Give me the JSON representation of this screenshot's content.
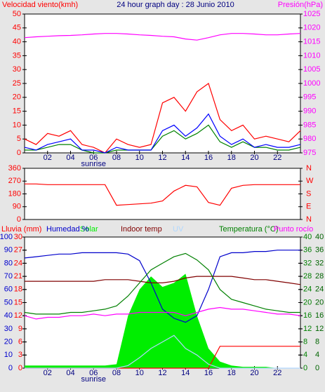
{
  "chart_data": [
    {
      "type": "line",
      "title": "24 hour graph day : 28 Junio 2010",
      "x": [
        0,
        1,
        2,
        3,
        4,
        5,
        6,
        7,
        8,
        9,
        10,
        11,
        12,
        13,
        14,
        15,
        16,
        17,
        18,
        19,
        20,
        21,
        22,
        23,
        24
      ],
      "xlim": [
        0,
        24
      ],
      "xticks": [
        {
          "value": 2,
          "label": "02"
        },
        {
          "value": 4,
          "label": "04"
        },
        {
          "value": 6,
          "label": "06"
        },
        {
          "value": 8,
          "label": "08"
        },
        {
          "value": 10,
          "label": "10"
        },
        {
          "value": 12,
          "label": "12"
        },
        {
          "value": 14,
          "label": "14"
        },
        {
          "value": 16,
          "label": "16"
        },
        {
          "value": 18,
          "label": "18"
        },
        {
          "value": 20,
          "label": "20"
        },
        {
          "value": 22,
          "label": "22"
        }
      ],
      "annotations": [
        {
          "x": 6,
          "text": "sunrise"
        }
      ],
      "axes": [
        {
          "side": "left",
          "label": "Velocidad viento(kmh)",
          "color": "#ff0000",
          "lim": [
            0,
            50
          ],
          "ticks": [
            0,
            5,
            10,
            15,
            20,
            25,
            30,
            35,
            40,
            45,
            50
          ]
        },
        {
          "side": "right",
          "label": "Presión(hPa)",
          "color": "#ff00ff",
          "lim": [
            975,
            1025
          ],
          "ticks": [
            975,
            980,
            985,
            990,
            995,
            1000,
            1005,
            1010,
            1015,
            1020,
            1025
          ]
        }
      ],
      "series": [
        {
          "color": "#ff0000",
          "axis": 0,
          "values": [
            5,
            3,
            7,
            6,
            8,
            3,
            2,
            0,
            5,
            3,
            2,
            3,
            18,
            20,
            15,
            22,
            25,
            12,
            8,
            10,
            5,
            6,
            5,
            4,
            8
          ]
        },
        {
          "color": "#008000",
          "axis": 0,
          "values": [
            1,
            1,
            2,
            3,
            3,
            1,
            0,
            0,
            1,
            1,
            1,
            1,
            6,
            8,
            5,
            7,
            10,
            4,
            2,
            4,
            2,
            2,
            1,
            1,
            2
          ]
        },
        {
          "color": "#0000ff",
          "axis": 0,
          "values": [
            2,
            1,
            3,
            4,
            5,
            1,
            1,
            0,
            2,
            1,
            1,
            1,
            8,
            10,
            6,
            9,
            14,
            6,
            3,
            5,
            2,
            3,
            2,
            2,
            3
          ]
        },
        {
          "color": "#ff00ff",
          "axis": 1,
          "values": [
            1016.5,
            1016.8,
            1017,
            1017.2,
            1017.3,
            1017.5,
            1017.8,
            1018,
            1018,
            1017.8,
            1017.5,
            1017.3,
            1017,
            1016.8,
            1016,
            1015.6,
            1016.5,
            1017.5,
            1018,
            1018,
            1017.8,
            1017.5,
            1017.5,
            1017.8,
            1018
          ]
        }
      ]
    },
    {
      "type": "line",
      "x": [
        0,
        1,
        2,
        3,
        4,
        5,
        6,
        7,
        8,
        9,
        10,
        11,
        12,
        13,
        14,
        15,
        16,
        17,
        18,
        19,
        20,
        21,
        22,
        23,
        24
      ],
      "xlim": [
        0,
        24
      ],
      "axes": [
        {
          "side": "left",
          "color": "#ff0000",
          "lim": [
            0,
            360
          ],
          "ticks": [
            0,
            90,
            180,
            270,
            360
          ]
        },
        {
          "side": "right",
          "color": "#ff0000",
          "lim": [
            0,
            360
          ],
          "ticks": [
            {
              "value": 0,
              "label": "N"
            },
            {
              "value": 90,
              "label": "E"
            },
            {
              "value": 180,
              "label": "S"
            },
            {
              "value": 270,
              "label": "W"
            },
            {
              "value": 360,
              "label": "N"
            }
          ]
        }
      ],
      "series": [
        {
          "color": "#ff0000",
          "axis": 0,
          "values": [
            250,
            250,
            245,
            245,
            245,
            245,
            245,
            245,
            100,
            105,
            110,
            115,
            130,
            200,
            240,
            230,
            120,
            100,
            220,
            240,
            245,
            245,
            245,
            245,
            245
          ]
        }
      ]
    },
    {
      "type": "line",
      "x": [
        0,
        1,
        2,
        3,
        4,
        5,
        6,
        7,
        8,
        9,
        10,
        11,
        12,
        13,
        14,
        15,
        16,
        17,
        18,
        19,
        20,
        21,
        22,
        23,
        24
      ],
      "xlim": [
        0,
        24
      ],
      "xticks": [
        {
          "value": 2,
          "label": "02"
        },
        {
          "value": 4,
          "label": "04"
        },
        {
          "value": 6,
          "label": "06"
        },
        {
          "value": 8,
          "label": "08"
        },
        {
          "value": 10,
          "label": "10"
        },
        {
          "value": 12,
          "label": "12"
        },
        {
          "value": 14,
          "label": "14"
        },
        {
          "value": 16,
          "label": "16"
        },
        {
          "value": 18,
          "label": "18"
        },
        {
          "value": 20,
          "label": "20"
        },
        {
          "value": 22,
          "label": "22"
        }
      ],
      "annotations": [
        {
          "x": 6,
          "text": "sunrise"
        }
      ],
      "axes": [
        {
          "side": "left",
          "color": "#0000cc",
          "lim": [
            0,
            100
          ],
          "ticks": [
            0,
            10,
            20,
            30,
            40,
            50,
            60,
            70,
            80,
            90,
            100
          ]
        },
        {
          "side": "left",
          "color": "#ff0000",
          "lim": [
            0,
            30
          ],
          "ticks": [
            0,
            3,
            6,
            9,
            12,
            15,
            18,
            21,
            24,
            27,
            30
          ]
        },
        {
          "side": "right",
          "color": "#008000",
          "lim": [
            0,
            40
          ],
          "ticks": [
            0,
            4,
            8,
            12,
            16,
            20,
            24,
            28,
            32,
            36,
            40
          ]
        },
        {
          "side": "right",
          "color": "#006400",
          "lim": [
            0,
            40
          ],
          "ticks": [
            0,
            4,
            8,
            12,
            16,
            20,
            24,
            28,
            32,
            36,
            40
          ]
        }
      ],
      "series": [
        {
          "name": "Lluvia (mm)",
          "color": "#ff0000",
          "axis": 1,
          "values": [
            0,
            0,
            0,
            0,
            0,
            0,
            0,
            0,
            0,
            0,
            0,
            0,
            0,
            0,
            0,
            0,
            0,
            5,
            5,
            5,
            5,
            5,
            5,
            5,
            5
          ]
        },
        {
          "name": "Humedad %",
          "color": "#0000cc",
          "axis": 0,
          "values": [
            84,
            85,
            86,
            87,
            87,
            88,
            88,
            88,
            88,
            87,
            82,
            65,
            45,
            38,
            35,
            40,
            60,
            85,
            88,
            88,
            89,
            89,
            90,
            90,
            90
          ]
        },
        {
          "name": "Solar",
          "color": "#00ee00",
          "axis": 0,
          "style": "area",
          "values": [
            2,
            2,
            2,
            2,
            2,
            2,
            2,
            2,
            3,
            40,
            60,
            70,
            62,
            65,
            72,
            40,
            15,
            5,
            2,
            1,
            1,
            1,
            0,
            0,
            0
          ]
        },
        {
          "name": "Indoor temp",
          "color": "#800000",
          "axis": 2,
          "values": [
            26.5,
            26.5,
            26.5,
            26.5,
            26.5,
            26.5,
            26.5,
            27,
            27,
            27,
            26.5,
            26,
            26,
            26.5,
            27.5,
            28,
            28,
            28,
            28,
            27.5,
            27,
            27,
            26.5,
            26,
            25.5
          ]
        },
        {
          "name": "UV",
          "color": "#b0d8ff",
          "axis": 0,
          "values": [
            0,
            0,
            0,
            0,
            0,
            0,
            0,
            0,
            0,
            2,
            8,
            15,
            20,
            25,
            15,
            10,
            3,
            0,
            0,
            0,
            0,
            0,
            0,
            0,
            0
          ]
        },
        {
          "name": "Temperatura (°C)",
          "color": "#008000",
          "axis": 2,
          "values": [
            17,
            16.5,
            16.5,
            16.5,
            17,
            17,
            17.5,
            18,
            19,
            22,
            26,
            30,
            32,
            34,
            35,
            33,
            30,
            24,
            21,
            20,
            19,
            18,
            17.5,
            17,
            17
          ]
        },
        {
          "name": "Punto rocío",
          "color": "#ff00ff",
          "axis": 2,
          "values": [
            16,
            15,
            15.5,
            15.5,
            16,
            16,
            16.5,
            16,
            16.5,
            16.5,
            17,
            17,
            17,
            17,
            16,
            17,
            18,
            18.5,
            18,
            18,
            17.5,
            17,
            16.5,
            16.5,
            16
          ]
        }
      ]
    }
  ]
}
